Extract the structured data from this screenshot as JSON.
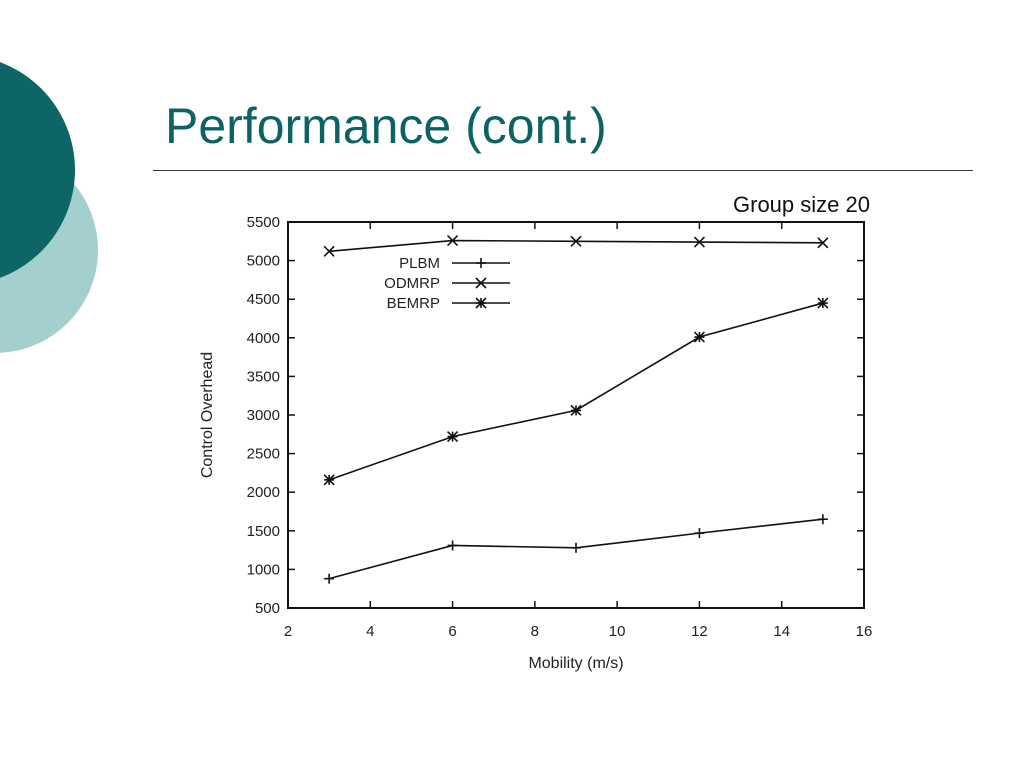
{
  "slide": {
    "title": "Performance (cont.)",
    "caption": "Group size 20"
  },
  "colors": {
    "title": "#0d6363",
    "circle_dark": "#0e6566",
    "circle_light": "#a3cfcf",
    "line": "#111111"
  },
  "chart_data": {
    "type": "line",
    "xlabel": "Mobility (m/s)",
    "ylabel": "Control Overhead",
    "xlim": [
      2,
      16
    ],
    "ylim": [
      500,
      5500
    ],
    "xticks": [
      2,
      4,
      6,
      8,
      10,
      12,
      14,
      16
    ],
    "yticks": [
      500,
      1000,
      1500,
      2000,
      2500,
      3000,
      3500,
      4000,
      4500,
      5000,
      5500
    ],
    "grid": false,
    "legend": "top-left",
    "x": [
      3,
      6,
      9,
      12,
      15
    ],
    "series": [
      {
        "name": "PLBM",
        "marker": "plus",
        "values": [
          880,
          1310,
          1280,
          1470,
          1650
        ]
      },
      {
        "name": "ODMRP",
        "marker": "cross",
        "values": [
          5120,
          5260,
          5250,
          5240,
          5230
        ]
      },
      {
        "name": "BEMRP",
        "marker": "star",
        "values": [
          2160,
          2720,
          3060,
          4010,
          4450
        ]
      }
    ]
  }
}
